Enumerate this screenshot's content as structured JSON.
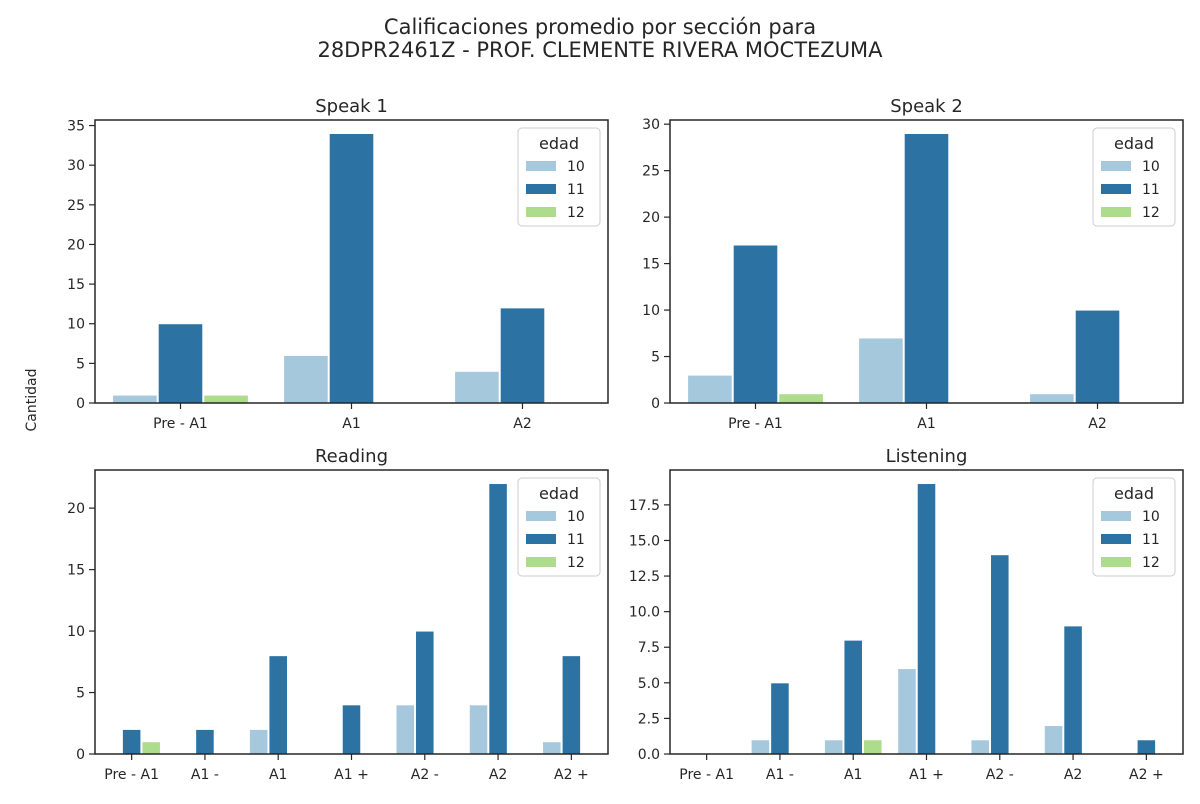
{
  "figure": {
    "title_line1": "Calificaciones promedio por sección para",
    "title_line2": "28DPR2461Z - PROF. CLEMENTE RIVERA MOCTEZUMA",
    "shared_ylabel": "Cantidad"
  },
  "colors": {
    "10": "#a6c8dc",
    "11": "#2c72a3",
    "12": "#addc8c"
  },
  "chart_data": [
    {
      "type": "bar",
      "title": "Speak 1",
      "categories": [
        "Pre - A1",
        "A1",
        "A2"
      ],
      "legend_title": "edad",
      "legend_position": "top-right",
      "series": [
        {
          "name": "10",
          "values": [
            1,
            6,
            4
          ]
        },
        {
          "name": "11",
          "values": [
            10,
            34,
            12
          ]
        },
        {
          "name": "12",
          "values": [
            1,
            0,
            0
          ]
        }
      ],
      "ylim": [
        0,
        35.7
      ],
      "yticks": [
        0,
        5,
        10,
        15,
        20,
        25,
        30,
        35
      ],
      "ytick_labels": [
        "0",
        "5",
        "10",
        "15",
        "20",
        "25",
        "30",
        "35"
      ]
    },
    {
      "type": "bar",
      "title": "Speak 2",
      "categories": [
        "Pre - A1",
        "A1",
        "A2"
      ],
      "legend_title": "edad",
      "legend_position": "top-right",
      "series": [
        {
          "name": "10",
          "values": [
            3,
            7,
            1
          ]
        },
        {
          "name": "11",
          "values": [
            17,
            29,
            10
          ]
        },
        {
          "name": "12",
          "values": [
            1,
            0,
            0
          ]
        }
      ],
      "ylim": [
        0,
        30.45
      ],
      "yticks": [
        0,
        5,
        10,
        15,
        20,
        25,
        30
      ],
      "ytick_labels": [
        "0",
        "5",
        "10",
        "15",
        "20",
        "25",
        "30"
      ]
    },
    {
      "type": "bar",
      "title": "Reading",
      "categories": [
        "Pre - A1",
        "A1 -",
        "A1",
        "A1 +",
        "A2 -",
        "A2",
        "A2 +"
      ],
      "legend_title": "edad",
      "legend_position": "top-right",
      "series": [
        {
          "name": "10",
          "values": [
            0,
            0,
            2,
            0,
            4,
            4,
            1
          ]
        },
        {
          "name": "11",
          "values": [
            2,
            2,
            8,
            4,
            10,
            22,
            8
          ]
        },
        {
          "name": "12",
          "values": [
            1,
            0,
            0,
            0,
            0,
            0,
            0
          ]
        }
      ],
      "ylim": [
        0,
        23.1
      ],
      "yticks": [
        0,
        5,
        10,
        15,
        20
      ],
      "ytick_labels": [
        "0",
        "5",
        "10",
        "15",
        "20"
      ]
    },
    {
      "type": "bar",
      "title": "Listening",
      "categories": [
        "Pre - A1",
        "A1 -",
        "A1",
        "A1 +",
        "A2 -",
        "A2",
        "A2 +"
      ],
      "legend_title": "edad",
      "legend_position": "top-right",
      "series": [
        {
          "name": "10",
          "values": [
            0,
            1,
            1,
            6,
            1,
            2,
            0
          ]
        },
        {
          "name": "11",
          "values": [
            0,
            5,
            8,
            19,
            14,
            9,
            1
          ]
        },
        {
          "name": "12",
          "values": [
            0,
            0,
            1,
            0,
            0,
            0,
            0
          ]
        }
      ],
      "ylim": [
        0,
        19.95
      ],
      "yticks": [
        0,
        2.5,
        5,
        7.5,
        10,
        12.5,
        15,
        17.5
      ],
      "ytick_labels": [
        "0.0",
        "2.5",
        "5.0",
        "7.5",
        "10.0",
        "12.5",
        "15.0",
        "17.5"
      ]
    }
  ]
}
